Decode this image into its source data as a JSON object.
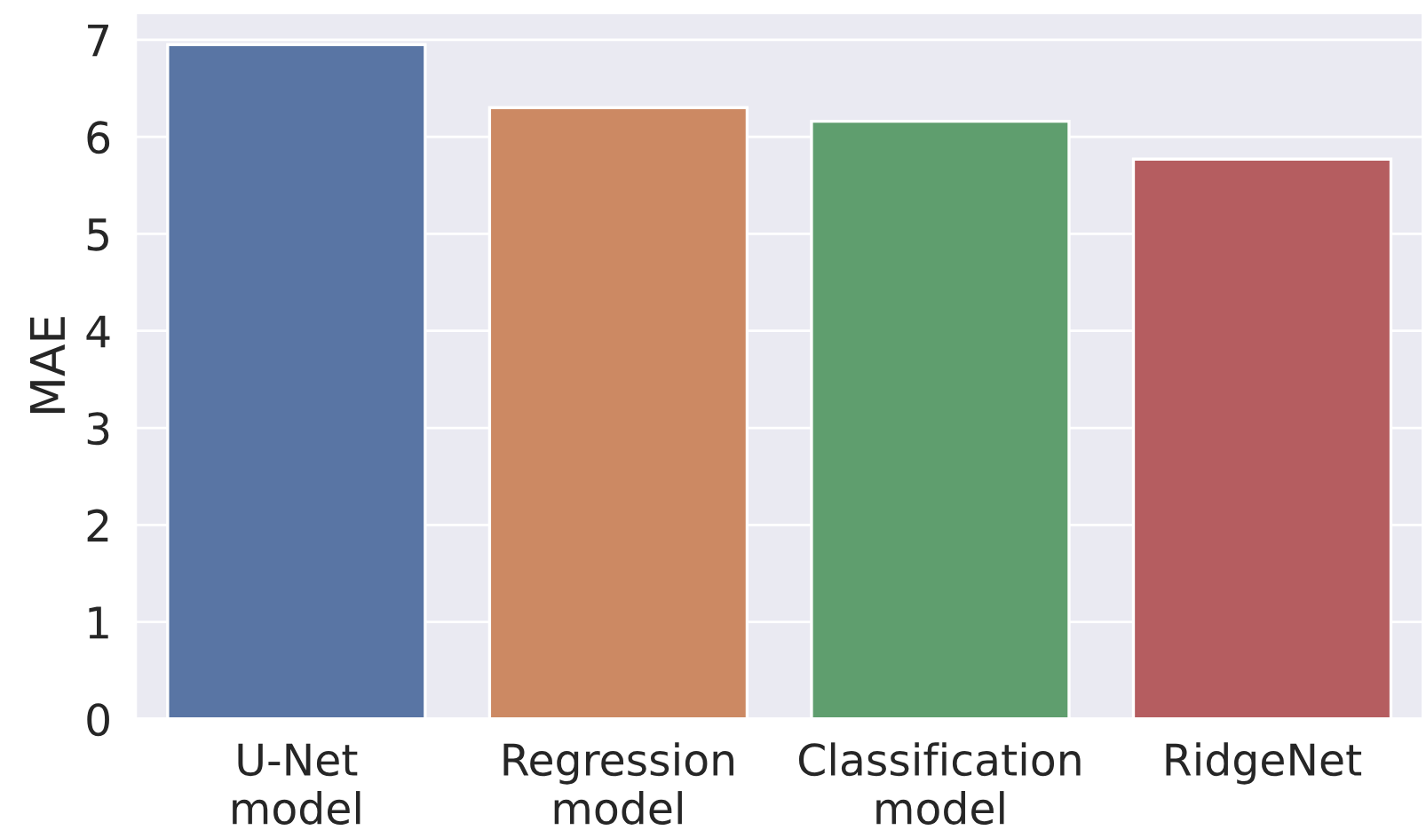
{
  "chart_data": {
    "type": "bar",
    "ylabel": "MAE",
    "categories": [
      "U-Net\nmodel",
      "Regression\nmodel",
      "Classification\nmodel",
      "RidgeNet"
    ],
    "values": [
      6.95,
      6.3,
      6.16,
      5.77
    ],
    "colors": [
      "#5975a4",
      "#cc8963",
      "#5f9e6e",
      "#b55d60"
    ],
    "ylim": [
      0,
      7.28
    ],
    "yticks": [
      0,
      1,
      2,
      3,
      4,
      5,
      6,
      7
    ],
    "grid": "y",
    "legend": false
  }
}
